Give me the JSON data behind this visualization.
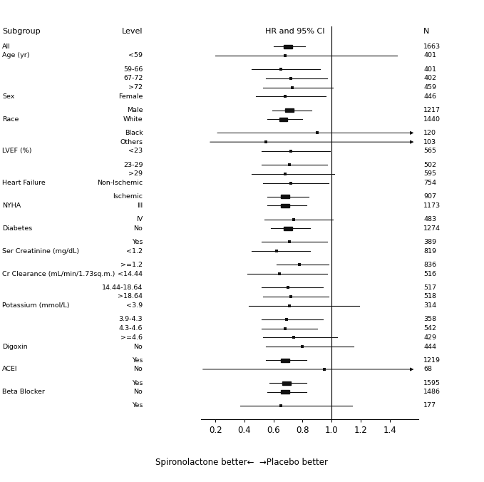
{
  "header_subgroup": "Subgroup",
  "header_level": "Level",
  "header_hr": "HR and 95% CI",
  "header_n": "N",
  "footer": "Spironolactone better←  →Placebo better",
  "xlim": [
    0.1,
    1.6
  ],
  "xticks": [
    0.2,
    0.4,
    0.6,
    0.8,
    1.0,
    1.2,
    1.4
  ],
  "xticklabels": [
    "0.2",
    "0.4",
    "0.6",
    "0.8",
    "1.0",
    "1.2",
    "1.4"
  ],
  "vline": 1.0,
  "rows": [
    {
      "subgroup": "All",
      "level": "",
      "hr": 0.7,
      "lo": 0.6,
      "hi": 0.82,
      "n": "1663",
      "big": true,
      "arrow": false,
      "gap_before": false
    },
    {
      "subgroup": "Age (yr)",
      "level": "<59",
      "hr": 0.68,
      "lo": 0.2,
      "hi": 1.45,
      "n": "401",
      "big": false,
      "arrow": false,
      "gap_before": true
    },
    {
      "subgroup": "",
      "level": "59-66",
      "hr": 0.65,
      "lo": 0.45,
      "hi": 0.92,
      "n": "401",
      "big": false,
      "arrow": false,
      "gap_before": false
    },
    {
      "subgroup": "",
      "level": "67-72",
      "hr": 0.72,
      "lo": 0.55,
      "hi": 0.97,
      "n": "402",
      "big": false,
      "arrow": false,
      "gap_before": false
    },
    {
      "subgroup": "",
      "level": ">72",
      "hr": 0.73,
      "lo": 0.53,
      "hi": 1.01,
      "n": "459",
      "big": false,
      "arrow": false,
      "gap_before": false
    },
    {
      "subgroup": "Sex",
      "level": "Female",
      "hr": 0.68,
      "lo": 0.48,
      "hi": 0.96,
      "n": "446",
      "big": false,
      "arrow": false,
      "gap_before": true
    },
    {
      "subgroup": "",
      "level": "Male",
      "hr": 0.71,
      "lo": 0.59,
      "hi": 0.86,
      "n": "1217",
      "big": true,
      "arrow": false,
      "gap_before": false
    },
    {
      "subgroup": "Race",
      "level": "White",
      "hr": 0.67,
      "lo": 0.56,
      "hi": 0.8,
      "n": "1440",
      "big": true,
      "arrow": false,
      "gap_before": true
    },
    {
      "subgroup": "",
      "level": "Black",
      "hr": 0.9,
      "lo": 0.2,
      "hi": 1.6,
      "n": "120",
      "big": false,
      "arrow": true,
      "gap_before": false
    },
    {
      "subgroup": "",
      "level": "Others",
      "hr": 0.55,
      "lo": 0.15,
      "hi": 1.6,
      "n": "103",
      "big": false,
      "arrow": true,
      "gap_before": false
    },
    {
      "subgroup": "LVEF (%)",
      "level": "<23",
      "hr": 0.72,
      "lo": 0.52,
      "hi": 0.99,
      "n": "565",
      "big": false,
      "arrow": false,
      "gap_before": true
    },
    {
      "subgroup": "",
      "level": "23-29",
      "hr": 0.71,
      "lo": 0.52,
      "hi": 0.97,
      "n": "502",
      "big": false,
      "arrow": false,
      "gap_before": false
    },
    {
      "subgroup": "",
      "level": ">29",
      "hr": 0.68,
      "lo": 0.45,
      "hi": 1.02,
      "n": "595",
      "big": false,
      "arrow": false,
      "gap_before": false
    },
    {
      "subgroup": "Heart Failure",
      "level": "Non-Ischemic",
      "hr": 0.72,
      "lo": 0.53,
      "hi": 0.98,
      "n": "754",
      "big": false,
      "arrow": false,
      "gap_before": true
    },
    {
      "subgroup": "",
      "level": "Ischemic",
      "hr": 0.68,
      "lo": 0.56,
      "hi": 0.84,
      "n": "907",
      "big": true,
      "arrow": false,
      "gap_before": false
    },
    {
      "subgroup": "NYHA",
      "level": "III",
      "hr": 0.68,
      "lo": 0.56,
      "hi": 0.83,
      "n": "1173",
      "big": true,
      "arrow": false,
      "gap_before": true
    },
    {
      "subgroup": "",
      "level": "IV",
      "hr": 0.74,
      "lo": 0.54,
      "hi": 1.01,
      "n": "483",
      "big": false,
      "arrow": false,
      "gap_before": false
    },
    {
      "subgroup": "Diabetes",
      "level": "No",
      "hr": 0.7,
      "lo": 0.58,
      "hi": 0.85,
      "n": "1274",
      "big": true,
      "arrow": false,
      "gap_before": true
    },
    {
      "subgroup": "",
      "level": "Yes",
      "hr": 0.71,
      "lo": 0.52,
      "hi": 0.97,
      "n": "389",
      "big": false,
      "arrow": false,
      "gap_before": false
    },
    {
      "subgroup": "Ser Creatinine (mg/dL)",
      "level": "<1.2",
      "hr": 0.62,
      "lo": 0.45,
      "hi": 0.85,
      "n": "819",
      "big": false,
      "arrow": false,
      "gap_before": true
    },
    {
      "subgroup": "",
      "level": ">=1.2",
      "hr": 0.78,
      "lo": 0.62,
      "hi": 0.98,
      "n": "836",
      "big": false,
      "arrow": false,
      "gap_before": false
    },
    {
      "subgroup": "Cr Clearance (mL/min/1.73sq.m.)",
      "level": "<14.44",
      "hr": 0.64,
      "lo": 0.42,
      "hi": 0.97,
      "n": "516",
      "big": false,
      "arrow": false,
      "gap_before": true
    },
    {
      "subgroup": "",
      "level": "14.44-18.64",
      "hr": 0.7,
      "lo": 0.52,
      "hi": 0.94,
      "n": "517",
      "big": false,
      "arrow": false,
      "gap_before": false
    },
    {
      "subgroup": "",
      "level": ">18.64",
      "hr": 0.72,
      "lo": 0.53,
      "hi": 0.98,
      "n": "518",
      "big": false,
      "arrow": false,
      "gap_before": false
    },
    {
      "subgroup": "Potassium (mmol/L)",
      "level": "<3.9",
      "hr": 0.71,
      "lo": 0.43,
      "hi": 1.19,
      "n": "314",
      "big": false,
      "arrow": false,
      "gap_before": true
    },
    {
      "subgroup": "",
      "level": "3.9-4.3",
      "hr": 0.69,
      "lo": 0.52,
      "hi": 0.94,
      "n": "358",
      "big": false,
      "arrow": false,
      "gap_before": false
    },
    {
      "subgroup": "",
      "level": "4.3-4.6",
      "hr": 0.68,
      "lo": 0.52,
      "hi": 0.9,
      "n": "542",
      "big": false,
      "arrow": false,
      "gap_before": false
    },
    {
      "subgroup": "",
      "level": ">=4.6",
      "hr": 0.74,
      "lo": 0.53,
      "hi": 1.04,
      "n": "429",
      "big": false,
      "arrow": false,
      "gap_before": false
    },
    {
      "subgroup": "Digoxin",
      "level": "No",
      "hr": 0.8,
      "lo": 0.55,
      "hi": 1.15,
      "n": "444",
      "big": false,
      "arrow": false,
      "gap_before": true
    },
    {
      "subgroup": "",
      "level": "Yes",
      "hr": 0.68,
      "lo": 0.55,
      "hi": 0.83,
      "n": "1219",
      "big": true,
      "arrow": false,
      "gap_before": false
    },
    {
      "subgroup": "ACEI",
      "level": "No",
      "hr": 0.95,
      "lo": 0.1,
      "hi": 1.6,
      "n": "68",
      "big": false,
      "arrow": true,
      "gap_before": true
    },
    {
      "subgroup": "",
      "level": "Yes",
      "hr": 0.69,
      "lo": 0.57,
      "hi": 0.83,
      "n": "1595",
      "big": true,
      "arrow": false,
      "gap_before": false
    },
    {
      "subgroup": "Beta Blocker",
      "level": "No",
      "hr": 0.68,
      "lo": 0.56,
      "hi": 0.83,
      "n": "1486",
      "big": true,
      "arrow": false,
      "gap_before": true
    },
    {
      "subgroup": "",
      "level": "Yes",
      "hr": 0.65,
      "lo": 0.37,
      "hi": 1.14,
      "n": "177",
      "big": false,
      "arrow": false,
      "gap_before": false
    }
  ]
}
